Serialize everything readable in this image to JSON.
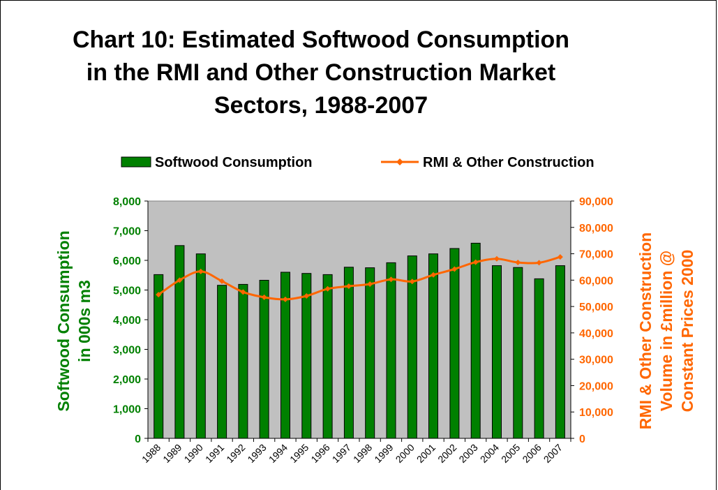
{
  "chart_data": {
    "type": "bar+line",
    "title": "Chart 10: Estimated Softwood Consumption in the RMI and Other Construction Market Sectors, 1988-2007",
    "categories": [
      "1988",
      "1989",
      "1990",
      "1991",
      "1992",
      "1993",
      "1994",
      "1995",
      "1996",
      "1997",
      "1998",
      "1999",
      "2000",
      "2001",
      "2002",
      "2003",
      "2004",
      "2005",
      "2006",
      "2007"
    ],
    "series": [
      {
        "name": "Softwood Consumption",
        "type": "bar",
        "axis": "left",
        "color": "#008000",
        "values": [
          5520,
          6500,
          6220,
          5160,
          5190,
          5330,
          5600,
          5560,
          5520,
          5770,
          5750,
          5920,
          6150,
          6220,
          6400,
          6580,
          5820,
          5760,
          5380,
          5820
        ]
      },
      {
        "name": "RMI & Other Construction",
        "type": "line",
        "axis": "right",
        "color": "#ff6600",
        "values": [
          54500,
          60000,
          63300,
          59600,
          55500,
          53500,
          52700,
          54000,
          56700,
          57700,
          58500,
          60300,
          59500,
          62000,
          64200,
          66800,
          68100,
          66700,
          66600,
          68800
        ]
      }
    ],
    "ylabel": "Softwood Consumption in 000s m3",
    "ylabel_lines": [
      "Softwood Consumption",
      "in 000s m3"
    ],
    "y2label": "RMI & Other Construction Volume in £million @ Constant Prices 2000",
    "y2label_lines": [
      "RMI & Other Construction",
      "Volume in £million @",
      "Constant Prices 2000"
    ],
    "ylim": [
      0,
      8000
    ],
    "y2lim": [
      0,
      90000
    ],
    "yticks": [
      "0",
      "1,000",
      "2,000",
      "3,000",
      "4,000",
      "5,000",
      "6,000",
      "7,000",
      "8,000"
    ],
    "y2ticks": [
      "0",
      "10,000",
      "20,000",
      "30,000",
      "40,000",
      "50,000",
      "60,000",
      "70,000",
      "80,000",
      "90,000"
    ],
    "legend_position": "top",
    "plot_background": "#c0c0c0",
    "grid": false
  }
}
